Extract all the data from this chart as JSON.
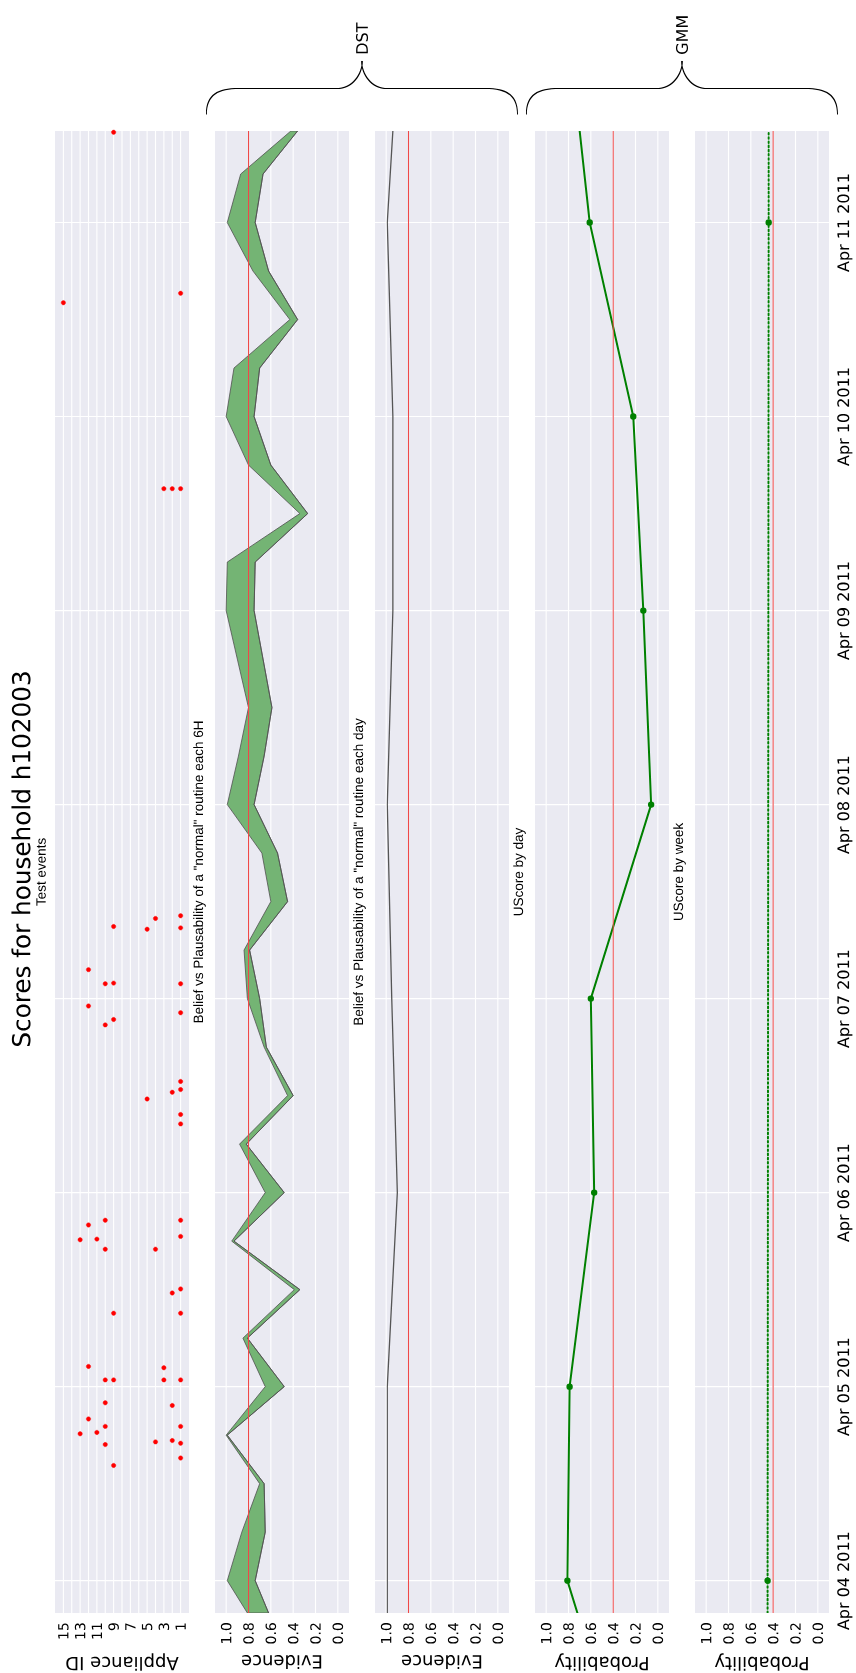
{
  "chart_data": [
    {
      "type": "scatter",
      "orientation": "horizontal",
      "title": "Scores for household h102003",
      "subtitle": "Test events",
      "xlabel": "Appliance ID",
      "ylim": [
        "2011-04-03T20:00",
        "2011-04-11T11:20"
      ],
      "yticks": [
        {
          "value": "2011-04-04",
          "label": null
        },
        {
          "value": "2011-04-05",
          "label": null
        },
        {
          "value": "2011-04-06",
          "label": null
        },
        {
          "value": "2011-04-07",
          "label": null
        },
        {
          "value": "2011-04-08",
          "label": null
        },
        {
          "value": "2011-04-09",
          "label": null
        },
        {
          "value": "2011-04-10",
          "label": null
        },
        {
          "value": "2011-04-11",
          "label": null
        }
      ],
      "xlim": [
        16,
        0
      ],
      "xticks": [
        15,
        {
          "value": 14,
          "label": null
        },
        13,
        {
          "value": 12,
          "label": null
        },
        11,
        {
          "value": 10,
          "label": null
        },
        9,
        {
          "value": 8,
          "label": null
        },
        7,
        {
          "value": 6,
          "label": null
        },
        5,
        {
          "value": 4,
          "label": null
        },
        3,
        {
          "value": 2,
          "label": null
        },
        1
      ],
      "grid": true,
      "tick_labels": "x",
      "marker": "circle",
      "series": [
        {
          "color": "#ff0000",
          "x": [
            "2011-04-04T14:15",
            "2011-04-04T15:10",
            "2011-04-04T16:50",
            "2011-04-04T17:00",
            "2011-04-04T17:10",
            "2011-04-04T17:20",
            "2011-04-04T18:10",
            "2011-04-04T18:20",
            "2011-04-04T19:05",
            "2011-04-04T19:05",
            "2011-04-04T20:00",
            "2011-04-04T21:40",
            "2011-04-04T22:00",
            "2011-04-05T00:50",
            "2011-04-05T00:50",
            "2011-04-05T00:50",
            "2011-04-05T00:50",
            "2011-04-05T02:20",
            "2011-04-05T02:30",
            "2011-04-05T09:05",
            "2011-04-05T09:05",
            "2011-04-05T11:35",
            "2011-04-05T12:05",
            "2011-04-05T17:00",
            "2011-04-05T17:00",
            "2011-04-05T18:10",
            "2011-04-05T18:15",
            "2011-04-05T18:35",
            "2011-04-05T20:00",
            "2011-04-05T20:35",
            "2011-04-05T20:35",
            "2011-04-06T08:30",
            "2011-04-06T09:40",
            "2011-04-06T11:35",
            "2011-04-06T12:25",
            "2011-04-06T12:45",
            "2011-04-06T13:45",
            "2011-04-06T20:45",
            "2011-04-06T21:25",
            "2011-04-06T22:15",
            "2011-04-06T23:05",
            "2011-04-07T01:50",
            "2011-04-07T01:55",
            "2011-04-07T01:50",
            "2011-04-07T03:35",
            "2011-04-07T08:35",
            "2011-04-07T08:45",
            "2011-04-07T08:55",
            "2011-04-07T09:55",
            "2011-04-07T10:15",
            "2011-04-09T15:05",
            "2011-04-09T15:05",
            "2011-04-09T15:05",
            "2011-04-10T14:05",
            "2011-04-10T15:15",
            "2011-04-11T11:10"
          ],
          "values": [
            9,
            1,
            10,
            1,
            4,
            2,
            13,
            11,
            10,
            1,
            12,
            2,
            10,
            10,
            9,
            3,
            1,
            3,
            12,
            9,
            1,
            2,
            1,
            10,
            4,
            13,
            11,
            1,
            12,
            10,
            1,
            1,
            1,
            5,
            2,
            1,
            1,
            10,
            9,
            1,
            12,
            10,
            9,
            1,
            12,
            5,
            1,
            9,
            4,
            1,
            3,
            2,
            1,
            15,
            1,
            9
          ]
        }
      ]
    },
    {
      "type": "line",
      "orientation": "horizontal",
      "title": "Belief vs Plausability of a \"normal\" routine each 6H",
      "xlabel": "Evidence",
      "annotations": [
        "DST"
      ],
      "ylim": [
        "2011-04-03T20:00",
        "2011-04-11T11:20"
      ],
      "yticks": [
        {
          "value": "2011-04-04",
          "label": null
        },
        {
          "value": "2011-04-05",
          "label": null
        },
        {
          "value": "2011-04-06",
          "label": null
        },
        {
          "value": "2011-04-07",
          "label": null
        },
        {
          "value": "2011-04-08",
          "label": null
        },
        {
          "value": "2011-04-09",
          "label": null
        },
        {
          "value": "2011-04-10",
          "label": null
        },
        {
          "value": "2011-04-11",
          "label": null
        }
      ],
      "xlim": [
        1.1,
        -0.1
      ],
      "xticks": [
        {
          "value": 1,
          "label": "1.0"
        },
        0.8,
        0.6,
        0.4,
        0.2,
        {
          "value": 0,
          "label": "0.0"
        }
      ],
      "grid": true,
      "tick_labels": "x",
      "ref_lines": [
        {
          "axis": "x",
          "value": 0.8,
          "color": "#f04848"
        }
      ],
      "series": [
        {
          "color": "#505050",
          "x": [
            "2011-04-03T20:00",
            "2011-04-04T00:00",
            "2011-04-04T06:00",
            "2011-04-04T12:00",
            "2011-04-04T18:00",
            "2011-04-05T00:00",
            "2011-04-05T06:00",
            "2011-04-05T12:00",
            "2011-04-05T18:00",
            "2011-04-06T00:00",
            "2011-04-06T06:00",
            "2011-04-06T12:00",
            "2011-04-06T18:00",
            "2011-04-07T00:00",
            "2011-04-07T06:00",
            "2011-04-07T12:00",
            "2011-04-07T18:00",
            "2011-04-08T00:00",
            "2011-04-08T06:00",
            "2011-04-08T12:00",
            "2011-04-08T18:00",
            "2011-04-09T00:00",
            "2011-04-09T06:00",
            "2011-04-09T12:00",
            "2011-04-09T18:00",
            "2011-04-10T00:00",
            "2011-04-10T06:00",
            "2011-04-10T12:00",
            "2011-04-10T18:00",
            "2011-04-11T00:00",
            "2011-04-11T06:00",
            "2011-04-11T11:20"
          ],
          "values": [
            0.62,
            0.74,
            0.65,
            0.66,
            0.99,
            0.48,
            0.81,
            0.34,
            0.93,
            0.48,
            0.82,
            0.4,
            0.64,
            0.7,
            0.79,
            0.45,
            0.54,
            0.75,
            0.66,
            0.59,
            0.67,
            0.75,
            0.74,
            0.27,
            0.6,
            0.75,
            0.7,
            0.36,
            0.62,
            0.74,
            0.67,
            0.36
          ],
          "lower": [
            0.62,
            0.74,
            0.65,
            0.66,
            0.99,
            0.48,
            0.81,
            0.34,
            0.93,
            0.48,
            0.82,
            0.4,
            0.64,
            0.7,
            0.79,
            0.45,
            0.54,
            0.75,
            0.66,
            0.59,
            0.67,
            0.75,
            0.74,
            0.27,
            0.6,
            0.75,
            0.7,
            0.36,
            0.62,
            0.74,
            0.67,
            0.36
          ],
          "upper": [
            0.81,
            0.99,
            0.86,
            0.7,
            1.0,
            0.65,
            0.85,
            0.39,
            0.95,
            0.65,
            0.88,
            0.45,
            0.66,
            0.81,
            0.84,
            0.6,
            0.68,
            0.99,
            0.89,
            0.8,
            0.9,
            1.0,
            0.99,
            0.34,
            0.8,
            1.0,
            0.93,
            0.43,
            0.76,
            0.99,
            0.87,
            0.42
          ]
        }
      ]
    },
    {
      "type": "line",
      "orientation": "horizontal",
      "title": "Belief vs Plausability of a \"normal\" routine each day",
      "xlabel": "Evidence",
      "ylim": [
        "2011-04-03T20:00",
        "2011-04-11T11:20"
      ],
      "yticks": [
        {
          "value": "2011-04-04",
          "label": null
        },
        {
          "value": "2011-04-05",
          "label": null
        },
        {
          "value": "2011-04-06",
          "label": null
        },
        {
          "value": "2011-04-07",
          "label": null
        },
        {
          "value": "2011-04-08",
          "label": null
        },
        {
          "value": "2011-04-09",
          "label": null
        },
        {
          "value": "2011-04-10",
          "label": null
        },
        {
          "value": "2011-04-11",
          "label": null
        }
      ],
      "xlim": [
        1.1,
        -0.1
      ],
      "xticks": [
        {
          "value": 1,
          "label": "1.0"
        },
        0.8,
        0.6,
        0.4,
        0.2,
        {
          "value": 0,
          "label": "0.0"
        }
      ],
      "grid": true,
      "tick_labels": "x",
      "ref_lines": [
        {
          "axis": "x",
          "value": 0.8,
          "color": "#f04848"
        }
      ],
      "series": [
        {
          "color": "#555555",
          "x": [
            "2011-04-03T20:00",
            "2011-04-04",
            "2011-04-05",
            "2011-04-06",
            "2011-04-07",
            "2011-04-08",
            "2011-04-09",
            "2011-04-10",
            "2011-04-11",
            "2011-04-11T11:20"
          ],
          "values": [
            0.99,
            0.99,
            0.99,
            0.9,
            0.95,
            0.99,
            0.94,
            0.94,
            0.99,
            0.94
          ]
        }
      ]
    },
    {
      "type": "line",
      "orientation": "horizontal",
      "title": "UScore by day",
      "xlabel": "Probability",
      "annotations": [
        "GMM"
      ],
      "ylim": [
        "2011-04-03T20:00",
        "2011-04-11T11:20"
      ],
      "yticks": [
        {
          "value": "2011-04-04",
          "label": null
        },
        {
          "value": "2011-04-05",
          "label": null
        },
        {
          "value": "2011-04-06",
          "label": null
        },
        {
          "value": "2011-04-07",
          "label": null
        },
        {
          "value": "2011-04-08",
          "label": null
        },
        {
          "value": "2011-04-09",
          "label": null
        },
        {
          "value": "2011-04-10",
          "label": null
        },
        {
          "value": "2011-04-11",
          "label": null
        }
      ],
      "xlim": [
        1.1,
        -0.1
      ],
      "xticks": [
        {
          "value": 1,
          "label": "1.0"
        },
        0.8,
        0.6,
        0.4,
        0.2,
        {
          "value": 0,
          "label": "0.0"
        }
      ],
      "grid": true,
      "tick_labels": "x",
      "marker": "circle",
      "ref_lines": [
        {
          "axis": "x",
          "value": 0.4,
          "color": "#f04848"
        }
      ],
      "series": [
        {
          "color": "#008000",
          "x": [
            "2011-04-03T20:00",
            "2011-04-04",
            "2011-04-05",
            "2011-04-06",
            "2011-04-07",
            "2011-04-08",
            "2011-04-09",
            "2011-04-10",
            "2011-04-11",
            "2011-04-11T11:20"
          ],
          "values": [
            0.72,
            0.81,
            0.79,
            0.57,
            0.6,
            0.06,
            0.13,
            0.22,
            0.61,
            0.7
          ]
        }
      ]
    },
    {
      "type": "line",
      "orientation": "horizontal",
      "title": "UScore by week",
      "xlabel": "Probability",
      "ylim": [
        "2011-04-03T20:00",
        "2011-04-11T11:20"
      ],
      "yticks": [
        {
          "value": "2011-04-04",
          "label": "Apr 04 2011"
        },
        {
          "value": "2011-04-05",
          "label": "Apr 05 2011"
        },
        {
          "value": "2011-04-06",
          "label": "Apr 06 2011"
        },
        {
          "value": "2011-04-07",
          "label": "Apr 07 2011"
        },
        {
          "value": "2011-04-08",
          "label": "Apr 08 2011"
        },
        {
          "value": "2011-04-09",
          "label": "Apr 09 2011"
        },
        {
          "value": "2011-04-10",
          "label": "Apr 10 2011"
        },
        {
          "value": "2011-04-11",
          "label": "Apr 11 2011"
        }
      ],
      "xlim": [
        1.1,
        -0.1
      ],
      "xticks": [
        {
          "value": 1,
          "label": "1.0"
        },
        0.8,
        0.6,
        0.4,
        0.2,
        {
          "value": 0,
          "label": "0.0"
        }
      ],
      "grid": true,
      "marker": "circle",
      "line_style": "dotted",
      "ref_lines": [
        {
          "axis": "x",
          "value": 0.4,
          "color": "#f04848"
        }
      ],
      "series": [
        {
          "color": "#008000",
          "x": [
            "2011-04-03T20:00",
            "2011-04-04",
            "2011-04-11",
            "2011-04-11T11:20"
          ],
          "values": [
            0.45,
            0.45,
            0.44,
            0.44
          ]
        }
      ]
    }
  ]
}
